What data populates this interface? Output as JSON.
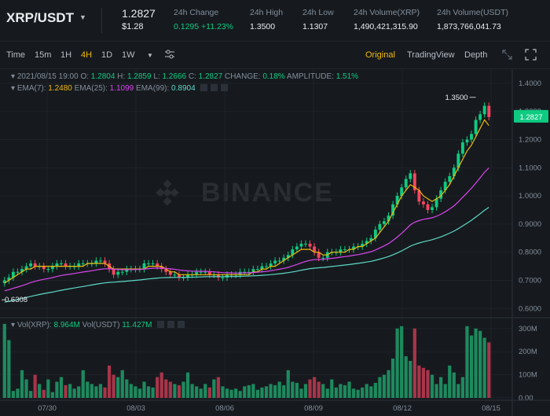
{
  "header": {
    "pair": "XRP/USDT",
    "last_price": "1.2827",
    "last_price_usd": "$1.28",
    "stats": [
      {
        "label": "24h Change",
        "value": "0.1295 +11.23%",
        "up": true
      },
      {
        "label": "24h High",
        "value": "1.3500",
        "up": false
      },
      {
        "label": "24h Low",
        "value": "1.1307",
        "up": false
      },
      {
        "label": "24h Volume(XRP)",
        "value": "1,490,421,315.90",
        "up": false
      },
      {
        "label": "24h Volume(USDT)",
        "value": "1,873,766,041.73",
        "up": false
      }
    ]
  },
  "toolbar": {
    "time": "Time",
    "i15m": "15m",
    "i1h": "1H",
    "i4h": "4H",
    "i1d": "1D",
    "i1w": "1W",
    "original": "Original",
    "tradingview": "TradingView",
    "depth": "Depth"
  },
  "legend": {
    "date": "2021/08/15 19:00",
    "o_label": "O:",
    "o": "1.2804",
    "h_label": "H:",
    "h": "1.2859",
    "l_label": "L:",
    "l": "1.2666",
    "c_label": "C:",
    "c": "1.2827",
    "change_label": "CHANGE:",
    "change": "0.18%",
    "amp_label": "AMPLITUDE:",
    "amp": "1.51%",
    "ema7_label": "EMA(7):",
    "ema7": "1.2480",
    "ema25_label": "EMA(25):",
    "ema25": "1.1099",
    "ema99_label": "EMA(99):",
    "ema99": "0.8904",
    "vol_label": "Vol(XRP):",
    "vol_xrp": "8.964M",
    "volusdt_label": "Vol(USDT)",
    "vol_usdt": "11.427M"
  },
  "watermark": "BINANCE",
  "colors": {
    "up": "#0ecb81",
    "down": "#f6465d",
    "ema7": "#f0b90b",
    "ema25": "#d946ef",
    "ema99": "#5ed8c8",
    "accent": "#f0b90b"
  },
  "chart_data": [
    {
      "type": "candlestick",
      "title": "",
      "interval": "4H",
      "x_ticks": [
        "07/30",
        "08/03",
        "08/06",
        "08/09",
        "08/12",
        "08/15"
      ],
      "y_ticks": [
        "1.4000",
        "1.3000",
        "1.2000",
        "1.1000",
        "1.0000",
        "0.9000",
        "0.8000",
        "0.7000",
        "0.6000"
      ],
      "ylim": [
        0.57,
        1.45
      ],
      "high_marker": "1.3500",
      "low_marker": "0.6308",
      "current_price": "1.2827",
      "close": [
        0.7,
        0.71,
        0.73,
        0.73,
        0.74,
        0.75,
        0.76,
        0.75,
        0.75,
        0.74,
        0.74,
        0.75,
        0.76,
        0.76,
        0.75,
        0.75,
        0.75,
        0.76,
        0.76,
        0.76,
        0.76,
        0.77,
        0.77,
        0.76,
        0.74,
        0.72,
        0.73,
        0.73,
        0.74,
        0.74,
        0.74,
        0.74,
        0.76,
        0.76,
        0.76,
        0.75,
        0.74,
        0.73,
        0.72,
        0.72,
        0.71,
        0.71,
        0.72,
        0.72,
        0.73,
        0.73,
        0.73,
        0.72,
        0.72,
        0.71,
        0.71,
        0.72,
        0.72,
        0.72,
        0.73,
        0.73,
        0.73,
        0.74,
        0.74,
        0.75,
        0.75,
        0.76,
        0.77,
        0.77,
        0.78,
        0.79,
        0.81,
        0.82,
        0.83,
        0.83,
        0.82,
        0.8,
        0.78,
        0.78,
        0.8,
        0.8,
        0.8,
        0.81,
        0.81,
        0.81,
        0.82,
        0.82,
        0.83,
        0.84,
        0.85,
        0.88,
        0.9,
        0.91,
        0.93,
        0.97,
        1.0,
        1.03,
        1.06,
        1.08,
        1.02,
        0.98,
        0.97,
        0.95,
        0.96,
        0.99,
        1.02,
        1.05,
        1.07,
        1.1,
        1.15,
        1.19,
        1.2,
        1.22,
        1.27,
        1.29,
        1.32,
        1.28
      ],
      "ema7": [
        0.69,
        0.7,
        0.71,
        0.72,
        0.73,
        0.74,
        0.74,
        0.75,
        0.75,
        0.75,
        0.75,
        0.75,
        0.75,
        0.75,
        0.75,
        0.75,
        0.75,
        0.75,
        0.75,
        0.76,
        0.76,
        0.76,
        0.76,
        0.76,
        0.75,
        0.74,
        0.74,
        0.74,
        0.74,
        0.74,
        0.74,
        0.74,
        0.74,
        0.75,
        0.75,
        0.75,
        0.75,
        0.74,
        0.73,
        0.73,
        0.72,
        0.72,
        0.72,
        0.72,
        0.72,
        0.72,
        0.72,
        0.72,
        0.72,
        0.72,
        0.72,
        0.72,
        0.72,
        0.72,
        0.72,
        0.72,
        0.72,
        0.73,
        0.73,
        0.74,
        0.74,
        0.75,
        0.75,
        0.76,
        0.77,
        0.78,
        0.79,
        0.8,
        0.81,
        0.81,
        0.81,
        0.8,
        0.8,
        0.79,
        0.79,
        0.8,
        0.8,
        0.8,
        0.8,
        0.81,
        0.81,
        0.82,
        0.82,
        0.83,
        0.84,
        0.85,
        0.87,
        0.89,
        0.91,
        0.94,
        0.97,
        1.0,
        1.02,
        1.04,
        1.03,
        1.02,
        1.0,
        0.99,
        0.98,
        0.99,
        1.0,
        1.02,
        1.04,
        1.07,
        1.1,
        1.13,
        1.16,
        1.18,
        1.21,
        1.24,
        1.27,
        1.25
      ]
    },
    {
      "type": "bar",
      "title": "",
      "y_ticks": [
        "300M",
        "200M",
        "100M",
        "0.00"
      ],
      "ylim": [
        0,
        340
      ],
      "values": [
        320,
        250,
        30,
        40,
        120,
        80,
        30,
        100,
        60,
        35,
        80,
        25,
        70,
        90,
        55,
        60,
        40,
        50,
        120,
        70,
        60,
        50,
        60,
        45,
        140,
        100,
        90,
        120,
        80,
        60,
        50,
        40,
        70,
        50,
        45,
        90,
        110,
        80,
        70,
        60,
        55,
        70,
        110,
        60,
        50,
        40,
        60,
        45,
        80,
        90,
        50,
        40,
        35,
        40,
        30,
        50,
        55,
        60,
        35,
        45,
        50,
        60,
        55,
        70,
        55,
        120,
        70,
        65,
        40,
        60,
        80,
        90,
        70,
        60,
        40,
        80,
        45,
        60,
        55,
        70,
        40,
        35,
        45,
        60,
        50,
        65,
        90,
        100,
        120,
        170,
        300,
        310,
        180,
        160,
        300,
        140,
        130,
        120,
        100,
        60,
        90,
        60,
        140,
        110,
        60,
        90,
        310,
        270,
        300,
        290,
        260,
        240
      ]
    }
  ]
}
